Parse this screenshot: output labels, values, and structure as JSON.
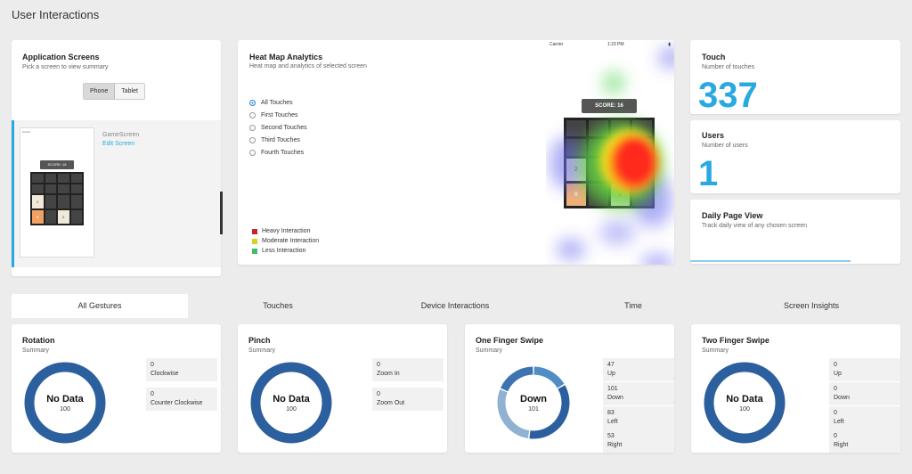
{
  "page": {
    "title": "User Interactions"
  },
  "app_screens": {
    "title": "Application Screens",
    "subtitle": "Pick a screen to view summary",
    "toggle": [
      "Phone",
      "Tablet"
    ],
    "selected_toggle": "Phone",
    "screen": {
      "name": "GameScreen",
      "edit_label": "Edit Screen",
      "thumb_carrier": "Carrier",
      "thumb_score": "SCORE: 16",
      "thumb_tiles": [
        "",
        "",
        "",
        "",
        "",
        "",
        "",
        "",
        "2",
        "",
        "",
        "",
        "8",
        "",
        "2",
        ""
      ]
    }
  },
  "heat_map": {
    "title": "Heat Map Analytics",
    "subtitle": "Heat map and analytics of selected screen",
    "options": [
      "All Touches",
      "First Touches",
      "Second Touches",
      "Third Touches",
      "Fourth Touches"
    ],
    "selected_option": "All Touches",
    "legend": [
      {
        "label": "Heavy Interaction",
        "color": "#c62828"
      },
      {
        "label": "Moderate Interaction",
        "color": "#d4d41e"
      },
      {
        "label": "Less Interaction",
        "color": "#3fbf5f"
      }
    ],
    "phone": {
      "carrier": "Carrier",
      "time": "1:23 PM",
      "score": "SCORE: 16",
      "tiles": [
        "",
        "",
        "",
        "",
        "",
        "",
        "",
        "",
        "2",
        "",
        "",
        "",
        "8",
        "",
        "2",
        ""
      ]
    }
  },
  "touch": {
    "title": "Touch",
    "subtitle": "Number of touches",
    "value": "337"
  },
  "users": {
    "title": "Users",
    "subtitle": "Number of users",
    "value": "1"
  },
  "daily": {
    "title": "Daily Page View",
    "subtitle": "Track daily view of any chosen screen"
  },
  "tabs": [
    "All Gestures",
    "Touches",
    "Device Interactions",
    "Time",
    "Screen Insights"
  ],
  "active_tab": "All Gestures",
  "gestures": [
    {
      "title": "Rotation",
      "subtitle": "Summary",
      "center_label": "No Data",
      "center_value": "100",
      "counts": [
        {
          "value": "0",
          "label": "Clockwise"
        },
        {
          "value": "0",
          "label": "Counter Clockwise"
        }
      ]
    },
    {
      "title": "Pinch",
      "subtitle": "Summary",
      "center_label": "No Data",
      "center_value": "100",
      "counts": [
        {
          "value": "0",
          "label": "Zoom In"
        },
        {
          "value": "0",
          "label": "Zoom Out"
        }
      ]
    },
    {
      "title": "One Finger Swipe",
      "subtitle": "Summary",
      "center_label": "Down",
      "center_value": "101",
      "counts": [
        {
          "value": "47",
          "label": "Up"
        },
        {
          "value": "101",
          "label": "Down"
        },
        {
          "value": "83",
          "label": "Left"
        },
        {
          "value": "53",
          "label": "Right"
        }
      ]
    },
    {
      "title": "Two Finger Swipe",
      "subtitle": "Summary",
      "center_label": "No Data",
      "center_value": "100",
      "counts": [
        {
          "value": "0",
          "label": "Up"
        },
        {
          "value": "0",
          "label": "Down"
        },
        {
          "value": "0",
          "label": "Left"
        },
        {
          "value": "0",
          "label": "Right"
        }
      ]
    }
  ],
  "colors": {
    "accent": "#2aa9e0",
    "donut": "#2c5f9e",
    "donut_light": "#8fb2d3"
  }
}
